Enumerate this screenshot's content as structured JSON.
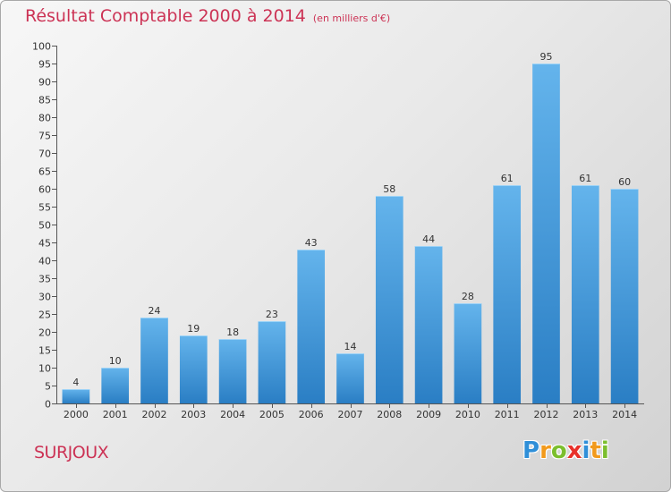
{
  "title": "Résultat Comptable 2000 à 2014",
  "subtitle": "(en milliers d'€)",
  "commune": "SURJOUX",
  "logo": {
    "letters": [
      "P",
      "r",
      "o",
      "x",
      "i",
      "t",
      "i"
    ],
    "colors": [
      "#2f8fd8",
      "#f29a1c",
      "#7cbf2e",
      "#e8312a",
      "#2f8fd8",
      "#f29a1c",
      "#7cbf2e"
    ]
  },
  "colors": {
    "bar_light": "#64b4ec",
    "bar_dark": "#2a7ec4",
    "title": "#cc3355"
  },
  "chart_data": {
    "type": "bar",
    "title": "Résultat Comptable 2000 à 2014",
    "subtitle": "(en milliers d'€)",
    "xlabel": "",
    "ylabel": "",
    "categories": [
      "2000",
      "2001",
      "2002",
      "2003",
      "2004",
      "2005",
      "2006",
      "2007",
      "2008",
      "2009",
      "2010",
      "2011",
      "2012",
      "2013",
      "2014"
    ],
    "values": [
      4,
      10,
      24,
      19,
      18,
      23,
      43,
      14,
      58,
      44,
      28,
      61,
      95,
      61,
      60
    ],
    "ylim": [
      0,
      100
    ],
    "ytick_step": 5,
    "grid": false,
    "legend": "none"
  }
}
